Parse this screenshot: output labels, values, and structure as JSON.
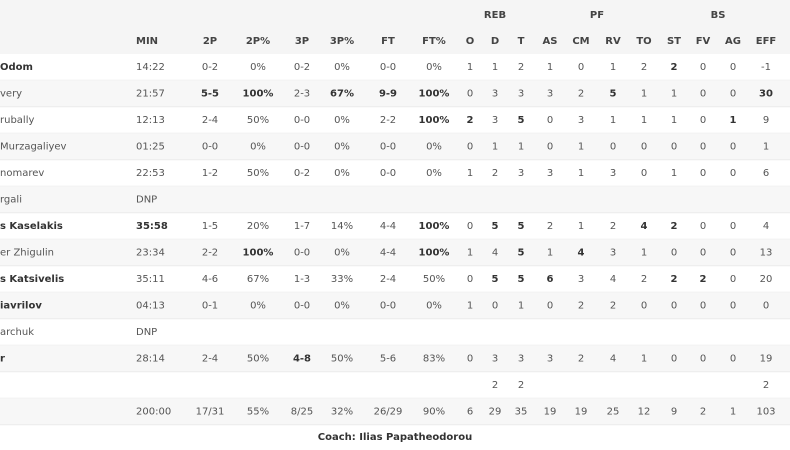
{
  "table": {
    "group_headers": [
      "REB",
      "PF",
      "BS"
    ],
    "columns": [
      "MIN",
      "2P",
      "2P%",
      "3P",
      "3P%",
      "FT",
      "FT%",
      "O",
      "D",
      "T",
      "AS",
      "CM",
      "RV",
      "TO",
      "ST",
      "FV",
      "AG",
      "EFF"
    ],
    "rows": [
      {
        "player": "Odom",
        "bold": true,
        "cells": [
          "14:22",
          "0-2",
          "0%",
          "0-2",
          "0%",
          "0-0",
          "0%",
          "1",
          "1",
          "2",
          "1",
          "0",
          "1",
          "2",
          "2",
          "0",
          "0",
          "-1"
        ],
        "bold_cells": [
          14
        ]
      },
      {
        "player": "very",
        "bold": false,
        "cells": [
          "21:57",
          "5-5",
          "100%",
          "2-3",
          "67%",
          "9-9",
          "100%",
          "0",
          "3",
          "3",
          "3",
          "2",
          "5",
          "1",
          "1",
          "0",
          "0",
          "30"
        ],
        "bold_cells": [
          1,
          2,
          4,
          5,
          6,
          12,
          17
        ]
      },
      {
        "player": "rubally",
        "bold": false,
        "cells": [
          "12:13",
          "2-4",
          "50%",
          "0-0",
          "0%",
          "2-2",
          "100%",
          "2",
          "3",
          "5",
          "0",
          "3",
          "1",
          "1",
          "1",
          "0",
          "1",
          "9"
        ],
        "bold_cells": [
          6,
          7,
          9,
          16
        ]
      },
      {
        "player": "Murzagaliyev",
        "bold": false,
        "cells": [
          "01:25",
          "0-0",
          "0%",
          "0-0",
          "0%",
          "0-0",
          "0%",
          "0",
          "1",
          "1",
          "0",
          "1",
          "0",
          "0",
          "0",
          "0",
          "0",
          "1"
        ],
        "bold_cells": []
      },
      {
        "player": "nomarev",
        "bold": false,
        "cells": [
          "22:53",
          "1-2",
          "50%",
          "0-2",
          "0%",
          "0-0",
          "0%",
          "1",
          "2",
          "3",
          "3",
          "1",
          "3",
          "0",
          "1",
          "0",
          "0",
          "6"
        ],
        "bold_cells": []
      },
      {
        "player": "rgali",
        "bold": false,
        "cells": [
          "DNP"
        ],
        "bold_cells": []
      },
      {
        "player": "s Kaselakis",
        "bold": true,
        "cells": [
          "35:58",
          "1-5",
          "20%",
          "1-7",
          "14%",
          "4-4",
          "100%",
          "0",
          "5",
          "5",
          "2",
          "1",
          "2",
          "4",
          "2",
          "0",
          "0",
          "4"
        ],
        "bold_cells": [
          0,
          6,
          8,
          9,
          13,
          14
        ]
      },
      {
        "player": "er Zhigulin",
        "bold": false,
        "cells": [
          "23:34",
          "2-2",
          "100%",
          "0-0",
          "0%",
          "4-4",
          "100%",
          "1",
          "4",
          "5",
          "1",
          "4",
          "3",
          "1",
          "0",
          "0",
          "0",
          "13"
        ],
        "bold_cells": [
          2,
          6,
          9,
          11
        ]
      },
      {
        "player": "s Katsivelis",
        "bold": true,
        "cells": [
          "35:11",
          "4-6",
          "67%",
          "1-3",
          "33%",
          "2-4",
          "50%",
          "0",
          "5",
          "5",
          "6",
          "3",
          "4",
          "2",
          "2",
          "2",
          "0",
          "20"
        ],
        "bold_cells": [
          8,
          9,
          10,
          14,
          15
        ]
      },
      {
        "player": "iavrilov",
        "bold": true,
        "cells": [
          "04:13",
          "0-1",
          "0%",
          "0-0",
          "0%",
          "0-0",
          "0%",
          "1",
          "0",
          "1",
          "0",
          "2",
          "2",
          "0",
          "0",
          "0",
          "0",
          "0"
        ],
        "bold_cells": []
      },
      {
        "player": "archuk",
        "bold": false,
        "cells": [
          "DNP"
        ],
        "bold_cells": []
      },
      {
        "player": "r",
        "bold": true,
        "cells": [
          "28:14",
          "2-4",
          "50%",
          "4-8",
          "50%",
          "5-6",
          "83%",
          "0",
          "3",
          "3",
          "3",
          "2",
          "4",
          "1",
          "0",
          "0",
          "0",
          "19"
        ],
        "bold_cells": [
          3
        ]
      },
      {
        "player": null,
        "bold": false,
        "cells": [
          null,
          null,
          null,
          null,
          null,
          null,
          null,
          null,
          "2",
          "2",
          null,
          null,
          null,
          null,
          null,
          null,
          null,
          "2"
        ],
        "bold_cells": []
      },
      {
        "player": null,
        "bold": false,
        "cells": [
          "200:00",
          "17/31",
          "55%",
          "8/25",
          "32%",
          "26/29",
          "90%",
          "6",
          "29",
          "35",
          "19",
          "19",
          "25",
          "12",
          "9",
          "2",
          "1",
          "103"
        ],
        "bold_cells": []
      }
    ],
    "coach": "Coach: Ilias Papatheodorou"
  }
}
